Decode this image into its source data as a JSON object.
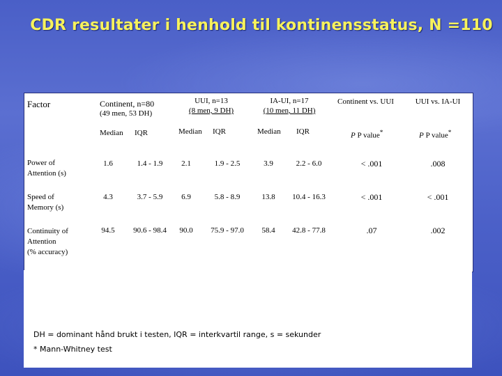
{
  "title": "CDR resultater i henhold til kontinensstatus, N =110",
  "table": {
    "header": {
      "factor": "Factor",
      "continent": "Continent, n=80",
      "continent_sub": "(49 men, 53 DH)",
      "uui": "UUI, n=13",
      "uui_sub": "(8 men, 9 DH)",
      "iaui": "IA-UI, n=17",
      "iaui_sub": "(10 men, 11 DH)",
      "cmp1": "Continent vs. UUI",
      "cmp2": "UUI vs. IA-UI",
      "median": "Median",
      "iqr": "IQR",
      "p_value": "P value",
      "p_sup": "*"
    },
    "rows": [
      {
        "factor": [
          "Power of",
          "Attention (s)"
        ],
        "c_med": "1.6",
        "c_iqr": "1.4 - 1.9",
        "u_med": "2.1",
        "u_iqr": "1.9 - 2.5",
        "i_med": "3.9",
        "i_iqr": "2.2 - 6.0",
        "p1": "< .001",
        "p2": ".008"
      },
      {
        "factor": [
          "Speed of",
          "Memory (s)"
        ],
        "c_med": "4.3",
        "c_iqr": "3.7 - 5.9",
        "u_med": "6.9",
        "u_iqr": "5.8 - 8.9",
        "i_med": "13.8",
        "i_iqr": "10.4 - 16.3",
        "p1": "< .001",
        "p2": "< .001"
      },
      {
        "factor": [
          "Continuity of",
          "Attention",
          "(% accuracy)"
        ],
        "c_med": "94.5",
        "c_iqr": "90.6 - 98.4",
        "u_med": "90.0",
        "u_iqr": "75.9 - 97.0",
        "i_med": "58.4",
        "i_iqr": "42.8 - 77.8",
        "p1": ".07",
        "p2": ".002"
      }
    ]
  },
  "footnotes": {
    "line1": "DH = dominant hånd brukt i testen, IQR = interkvartil range, s = sekunder",
    "line2": "* Mann-Whitney test"
  }
}
